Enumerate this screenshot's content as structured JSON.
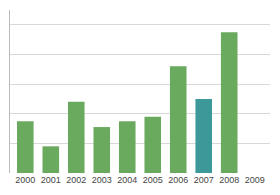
{
  "chart_data": {
    "type": "bar",
    "categories": [
      "2000",
      "2001",
      "2002",
      "2003",
      "2004",
      "2005",
      "2006",
      "2007",
      "2008",
      "2009"
    ],
    "values": [
      3.5,
      1.8,
      4.8,
      3.1,
      3.5,
      3.8,
      7.2,
      5.0,
      9.5,
      0
    ],
    "colors": [
      "#6aaa5e",
      "#6aaa5e",
      "#6aaa5e",
      "#6aaa5e",
      "#6aaa5e",
      "#6aaa5e",
      "#6aaa5e",
      "#3d9999",
      "#6aaa5e",
      "#6aaa5e"
    ],
    "ylim": [
      0,
      11.0
    ],
    "yticks": [
      2,
      4,
      6,
      8,
      10
    ],
    "grid": true,
    "tick_labels": "x"
  }
}
